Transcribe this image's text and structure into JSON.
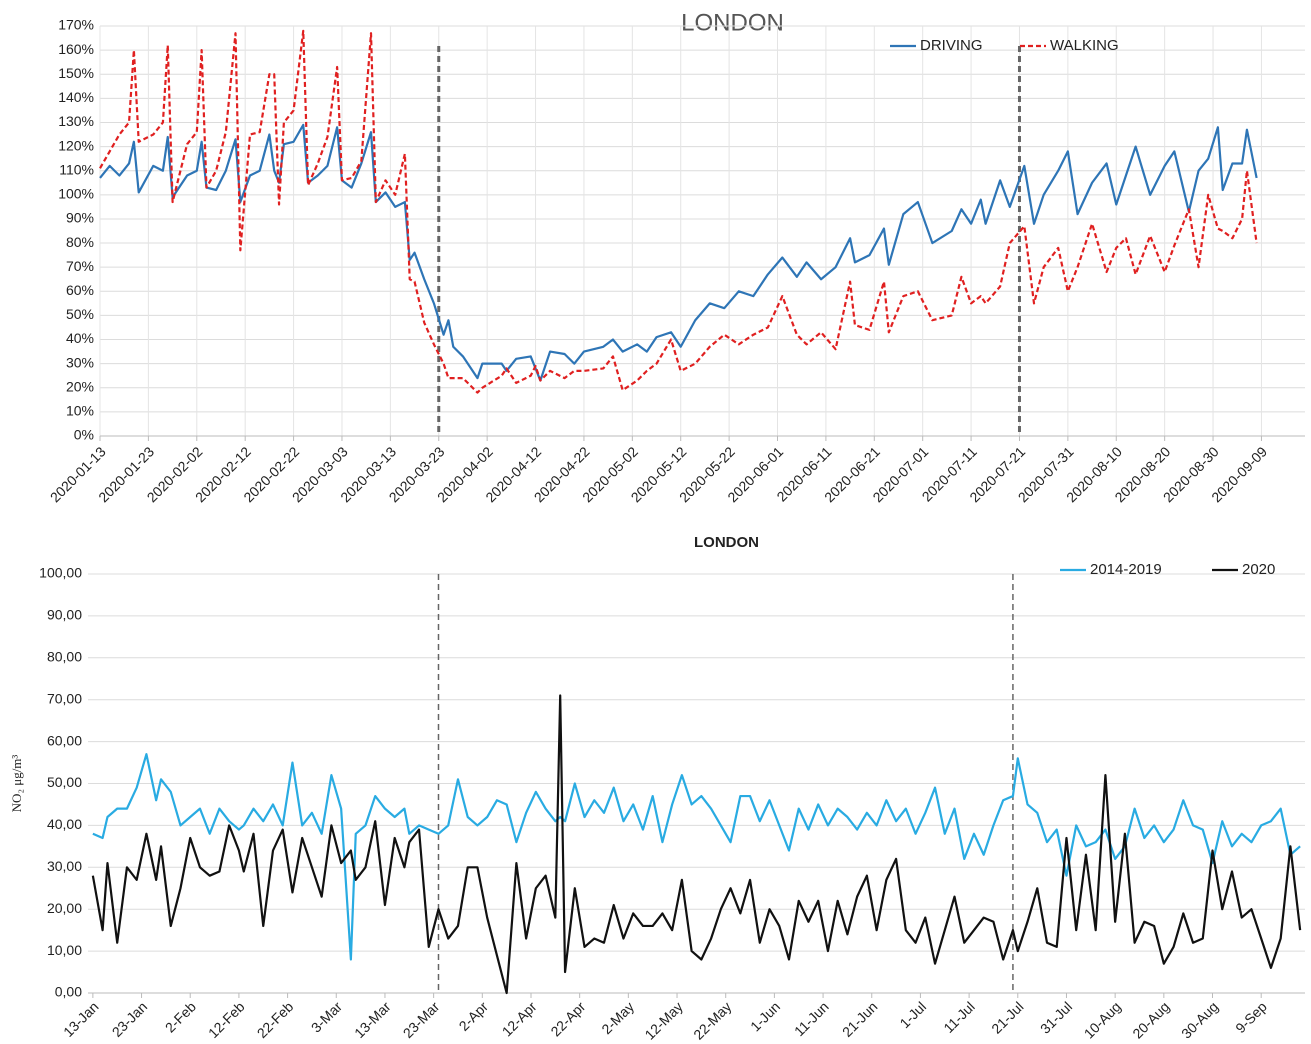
{
  "chart_data": [
    {
      "type": "line",
      "title": "LONDON",
      "x": [
        "2020-01-13",
        "2020-01-15",
        "2020-01-17",
        "2020-01-19",
        "2020-01-20",
        "2020-01-21",
        "2020-01-24",
        "2020-01-26",
        "2020-01-27",
        "2020-01-28",
        "2020-01-31",
        "2020-02-02",
        "2020-02-03",
        "2020-02-04",
        "2020-02-06",
        "2020-02-08",
        "2020-02-10",
        "2020-02-11",
        "2020-02-13",
        "2020-02-15",
        "2020-02-17",
        "2020-02-18",
        "2020-02-19",
        "2020-02-20",
        "2020-02-22",
        "2020-02-24",
        "2020-02-25",
        "2020-02-27",
        "2020-02-29",
        "2020-03-02",
        "2020-03-03",
        "2020-03-05",
        "2020-03-07",
        "2020-03-09",
        "2020-03-10",
        "2020-03-12",
        "2020-03-14",
        "2020-03-16",
        "2020-03-17",
        "2020-03-18",
        "2020-03-20",
        "2020-03-22",
        "2020-03-24",
        "2020-03-25",
        "2020-03-26",
        "2020-03-28",
        "2020-03-31",
        "2020-04-01",
        "2020-04-05",
        "2020-04-06",
        "2020-04-08",
        "2020-04-11",
        "2020-04-12",
        "2020-04-13",
        "2020-04-15",
        "2020-04-18",
        "2020-04-20",
        "2020-04-22",
        "2020-04-26",
        "2020-04-28",
        "2020-04-30",
        "2020-05-03",
        "2020-05-05",
        "2020-05-07",
        "2020-05-10",
        "2020-05-12",
        "2020-05-15",
        "2020-05-18",
        "2020-05-21",
        "2020-05-24",
        "2020-05-27",
        "2020-05-30",
        "2020-06-02",
        "2020-06-05",
        "2020-06-07",
        "2020-06-10",
        "2020-06-13",
        "2020-06-16",
        "2020-06-17",
        "2020-06-20",
        "2020-06-23",
        "2020-06-24",
        "2020-06-27",
        "2020-06-30",
        "2020-07-03",
        "2020-07-07",
        "2020-07-09",
        "2020-07-11",
        "2020-07-13",
        "2020-07-14",
        "2020-07-17",
        "2020-07-19",
        "2020-07-22",
        "2020-07-24",
        "2020-07-26",
        "2020-07-29",
        "2020-07-31",
        "2020-08-02",
        "2020-08-05",
        "2020-08-08",
        "2020-08-10",
        "2020-08-12",
        "2020-08-14",
        "2020-08-17",
        "2020-08-20",
        "2020-08-22",
        "2020-08-25",
        "2020-08-27",
        "2020-08-29",
        "2020-08-31",
        "2020-09-01",
        "2020-09-03",
        "2020-09-05",
        "2020-09-06",
        "2020-09-08"
      ],
      "series": [
        {
          "name": "DRIVING",
          "color": "#2e75b6",
          "line_style": "solid",
          "values": [
            107,
            112,
            108,
            113,
            122,
            101,
            112,
            110,
            124,
            99,
            108,
            110,
            122,
            103,
            102,
            110,
            123,
            97,
            108,
            110,
            125,
            110,
            105,
            121,
            122,
            129,
            105,
            108,
            112,
            128,
            106,
            103,
            113,
            126,
            97,
            101,
            95,
            97,
            73,
            76,
            65,
            55,
            42,
            48,
            37,
            33,
            24,
            30,
            30,
            27,
            32,
            33,
            28,
            23,
            35,
            34,
            30,
            35,
            37,
            40,
            35,
            38,
            35,
            41,
            43,
            37,
            48,
            55,
            53,
            60,
            58,
            67,
            74,
            66,
            72,
            65,
            70,
            82,
            72,
            75,
            86,
            71,
            92,
            97,
            80,
            85,
            94,
            88,
            98,
            88,
            106,
            95,
            112,
            88,
            100,
            110,
            118,
            92,
            105,
            113,
            96,
            108,
            120,
            100,
            112,
            118,
            93,
            110,
            115,
            128,
            102,
            113,
            113,
            127,
            107
          ]
        },
        {
          "name": "WALKING",
          "color": "#e02020",
          "line_style": "dashed",
          "values": [
            111,
            118,
            125,
            130,
            160,
            122,
            125,
            130,
            162,
            97,
            121,
            126,
            160,
            103,
            110,
            126,
            167,
            77,
            125,
            126,
            150,
            150,
            96,
            130,
            135,
            168,
            104,
            113,
            124,
            153,
            106,
            107,
            114,
            167,
            97,
            106,
            100,
            117,
            65,
            64,
            47,
            38,
            30,
            24,
            24,
            24,
            18,
            20,
            25,
            28,
            22,
            25,
            29,
            23,
            27,
            24,
            27,
            27,
            28,
            33,
            19,
            23,
            27,
            30,
            40,
            27,
            30,
            37,
            42,
            38,
            42,
            45,
            58,
            42,
            38,
            43,
            36,
            64,
            46,
            44,
            64,
            43,
            58,
            60,
            48,
            50,
            66,
            55,
            58,
            55,
            62,
            80,
            87,
            55,
            70,
            78,
            60,
            70,
            88,
            68,
            78,
            82,
            67,
            83,
            68,
            79,
            94,
            70,
            100,
            86,
            85,
            82,
            90,
            110,
            80
          ]
        }
      ],
      "xlim": [
        "2020-01-13",
        "2020-09-18"
      ],
      "xticks": [
        "2020-01-13",
        "2020-01-23",
        "2020-02-02",
        "2020-02-12",
        "2020-02-22",
        "2020-03-03",
        "2020-03-13",
        "2020-03-23",
        "2020-04-02",
        "2020-04-12",
        "2020-04-22",
        "2020-05-02",
        "2020-05-12",
        "2020-05-22",
        "2020-06-01",
        "2020-06-11",
        "2020-06-21",
        "2020-07-01",
        "2020-07-11",
        "2020-07-21",
        "2020-07-31",
        "2020-08-10",
        "2020-08-20",
        "2020-08-30",
        "2020-09-09"
      ],
      "ylim": [
        0,
        170
      ],
      "yticks": [
        {
          "value": 0,
          "label": "0%"
        },
        {
          "value": 10,
          "label": "10%"
        },
        {
          "value": 20,
          "label": "20%"
        },
        {
          "value": 30,
          "label": "30%"
        },
        {
          "value": 40,
          "label": "40%"
        },
        {
          "value": 50,
          "label": "50%"
        },
        {
          "value": 60,
          "label": "60%"
        },
        {
          "value": 70,
          "label": "70%"
        },
        {
          "value": 80,
          "label": "80%"
        },
        {
          "value": 90,
          "label": "90%"
        },
        {
          "value": 100,
          "label": "100%"
        },
        {
          "value": 110,
          "label": "110%"
        },
        {
          "value": 120,
          "label": "120%"
        },
        {
          "value": 130,
          "label": "130%"
        },
        {
          "value": 140,
          "label": "140%"
        },
        {
          "value": 150,
          "label": "150%"
        },
        {
          "value": 160,
          "label": "160%"
        },
        {
          "value": 170,
          "label": "170%"
        }
      ],
      "reference_lines": [
        "2020-03-23",
        "2020-07-21"
      ],
      "grid": "both",
      "legend": "upper right"
    },
    {
      "type": "line",
      "title": "LONDON",
      "y_label": "NO₂ μg/m³",
      "x": [
        "13-Jan",
        "15-Jan",
        "16-Jan",
        "18-Jan",
        "20-Jan",
        "22-Jan",
        "24-Jan",
        "26-Jan",
        "27-Jan",
        "29-Jan",
        "31-Jan",
        "2-Feb",
        "4-Feb",
        "6-Feb",
        "8-Feb",
        "10-Feb",
        "12-Feb",
        "13-Feb",
        "15-Feb",
        "17-Feb",
        "19-Feb",
        "21-Feb",
        "23-Feb",
        "25-Feb",
        "27-Feb",
        "29-Feb",
        "2-Mar",
        "4-Mar",
        "6-Mar",
        "7-Mar",
        "9-Mar",
        "11-Mar",
        "13-Mar",
        "15-Mar",
        "17-Mar",
        "18-Mar",
        "20-Mar",
        "22-Mar",
        "24-Mar",
        "26-Mar",
        "28-Mar",
        "30-Mar",
        "1-Apr",
        "3-Apr",
        "5-Apr",
        "7-Apr",
        "9-Apr",
        "11-Apr",
        "13-Apr",
        "15-Apr",
        "17-Apr",
        "18-Apr",
        "19-Apr",
        "21-Apr",
        "23-Apr",
        "25-Apr",
        "27-Apr",
        "29-Apr",
        "1-May",
        "3-May",
        "5-May",
        "7-May",
        "9-May",
        "11-May",
        "13-May",
        "15-May",
        "17-May",
        "19-May",
        "21-May",
        "23-May",
        "25-May",
        "27-May",
        "29-May",
        "31-May",
        "2-Jun",
        "4-Jun",
        "6-Jun",
        "8-Jun",
        "10-Jun",
        "12-Jun",
        "14-Jun",
        "16-Jun",
        "18-Jun",
        "20-Jun",
        "22-Jun",
        "24-Jun",
        "26-Jun",
        "28-Jun",
        "30-Jun",
        "2-Jul",
        "4-Jul",
        "6-Jul",
        "8-Jul",
        "10-Jul",
        "12-Jul",
        "14-Jul",
        "16-Jul",
        "18-Jul",
        "20-Jul",
        "21-Jul",
        "23-Jul",
        "25-Jul",
        "27-Jul",
        "29-Jul",
        "31-Jul",
        "2-Aug",
        "4-Aug",
        "6-Aug",
        "8-Aug",
        "10-Aug",
        "12-Aug",
        "14-Aug",
        "16-Aug",
        "18-Aug",
        "20-Aug",
        "22-Aug",
        "24-Aug",
        "26-Aug",
        "28-Aug",
        "30-Aug",
        "1-Sep",
        "3-Sep",
        "5-Sep",
        "7-Sep",
        "9-Sep",
        "11-Sep",
        "13-Sep",
        "15-Sep",
        "17-Sep"
      ],
      "series": [
        {
          "name": "2014-2019",
          "color": "#29abe2",
          "line_style": "solid",
          "values": [
            38,
            37,
            42,
            44,
            44,
            49,
            57,
            46,
            51,
            48,
            40,
            42,
            44,
            38,
            44,
            41,
            39,
            40,
            44,
            41,
            45,
            40,
            55,
            40,
            43,
            38,
            52,
            44,
            8,
            38,
            40,
            47,
            44,
            42,
            44,
            38,
            40,
            39,
            38,
            40,
            51,
            42,
            40,
            42,
            46,
            45,
            36,
            43,
            48,
            44,
            41,
            42,
            41,
            50,
            42,
            46,
            43,
            49,
            41,
            45,
            39,
            47,
            36,
            45,
            52,
            45,
            47,
            44,
            40,
            36,
            47,
            47,
            41,
            46,
            40,
            34,
            44,
            39,
            45,
            40,
            44,
            42,
            39,
            43,
            40,
            46,
            41,
            44,
            38,
            43,
            49,
            38,
            44,
            32,
            38,
            33,
            40,
            46,
            47,
            56,
            45,
            43,
            36,
            39,
            28,
            40,
            35,
            36,
            39,
            32,
            35,
            44,
            37,
            40,
            36,
            39,
            46,
            40,
            39,
            31,
            41,
            35,
            38,
            36,
            40,
            41,
            44,
            33,
            35
          ]
        },
        {
          "name": "2020",
          "color": "#111111",
          "line_style": "solid",
          "values": [
            28,
            15,
            31,
            12,
            30,
            27,
            38,
            27,
            35,
            16,
            25,
            37,
            30,
            28,
            29,
            40,
            34,
            29,
            38,
            16,
            34,
            39,
            24,
            37,
            30,
            23,
            40,
            31,
            34,
            27,
            30,
            41,
            21,
            37,
            30,
            36,
            39,
            11,
            20,
            13,
            16,
            30,
            30,
            18,
            9,
            0,
            31,
            13,
            25,
            28,
            18,
            71,
            5,
            25,
            11,
            13,
            12,
            21,
            13,
            19,
            16,
            16,
            19,
            15,
            27,
            10,
            8,
            13,
            20,
            25,
            19,
            27,
            12,
            20,
            16,
            8,
            22,
            17,
            22,
            10,
            22,
            14,
            23,
            28,
            15,
            27,
            32,
            15,
            12,
            18,
            7,
            15,
            23,
            12,
            15,
            18,
            17,
            8,
            15,
            10,
            17,
            25,
            12,
            11,
            37,
            15,
            33,
            15,
            52,
            17,
            38,
            12,
            17,
            16,
            7,
            11,
            19,
            12,
            13,
            34,
            20,
            29,
            18,
            20,
            13,
            6,
            13,
            35,
            15
          ]
        }
      ],
      "xlim": [
        "12-Jan",
        "18-Sep"
      ],
      "xticks": [
        "13-Jan",
        "23-Jan",
        "2-Feb",
        "12-Feb",
        "22-Feb",
        "3-Mar",
        "13-Mar",
        "23-Mar",
        "2-Apr",
        "12-Apr",
        "22-Apr",
        "2-May",
        "12-May",
        "22-May",
        "1-Jun",
        "11-Jun",
        "21-Jun",
        "1-Jul",
        "11-Jul",
        "21-Jul",
        "31-Jul",
        "10-Aug",
        "20-Aug",
        "30-Aug",
        "9-Sep"
      ],
      "ylim": [
        0,
        100
      ],
      "yticks": [
        {
          "value": 0,
          "label": "0,00"
        },
        {
          "value": 10,
          "label": "10,00"
        },
        {
          "value": 20,
          "label": "20,00"
        },
        {
          "value": 30,
          "label": "30,00"
        },
        {
          "value": 40,
          "label": "40,00"
        },
        {
          "value": 50,
          "label": "50,00"
        },
        {
          "value": 60,
          "label": "60,00"
        },
        {
          "value": 70,
          "label": "70,00"
        },
        {
          "value": 80,
          "label": "80,00"
        },
        {
          "value": 90,
          "label": "90,00"
        },
        {
          "value": 100,
          "label": "100,00"
        }
      ],
      "reference_lines": [
        "24-Mar",
        "20-Jul"
      ],
      "grid": "y",
      "legend": "upper right"
    }
  ]
}
